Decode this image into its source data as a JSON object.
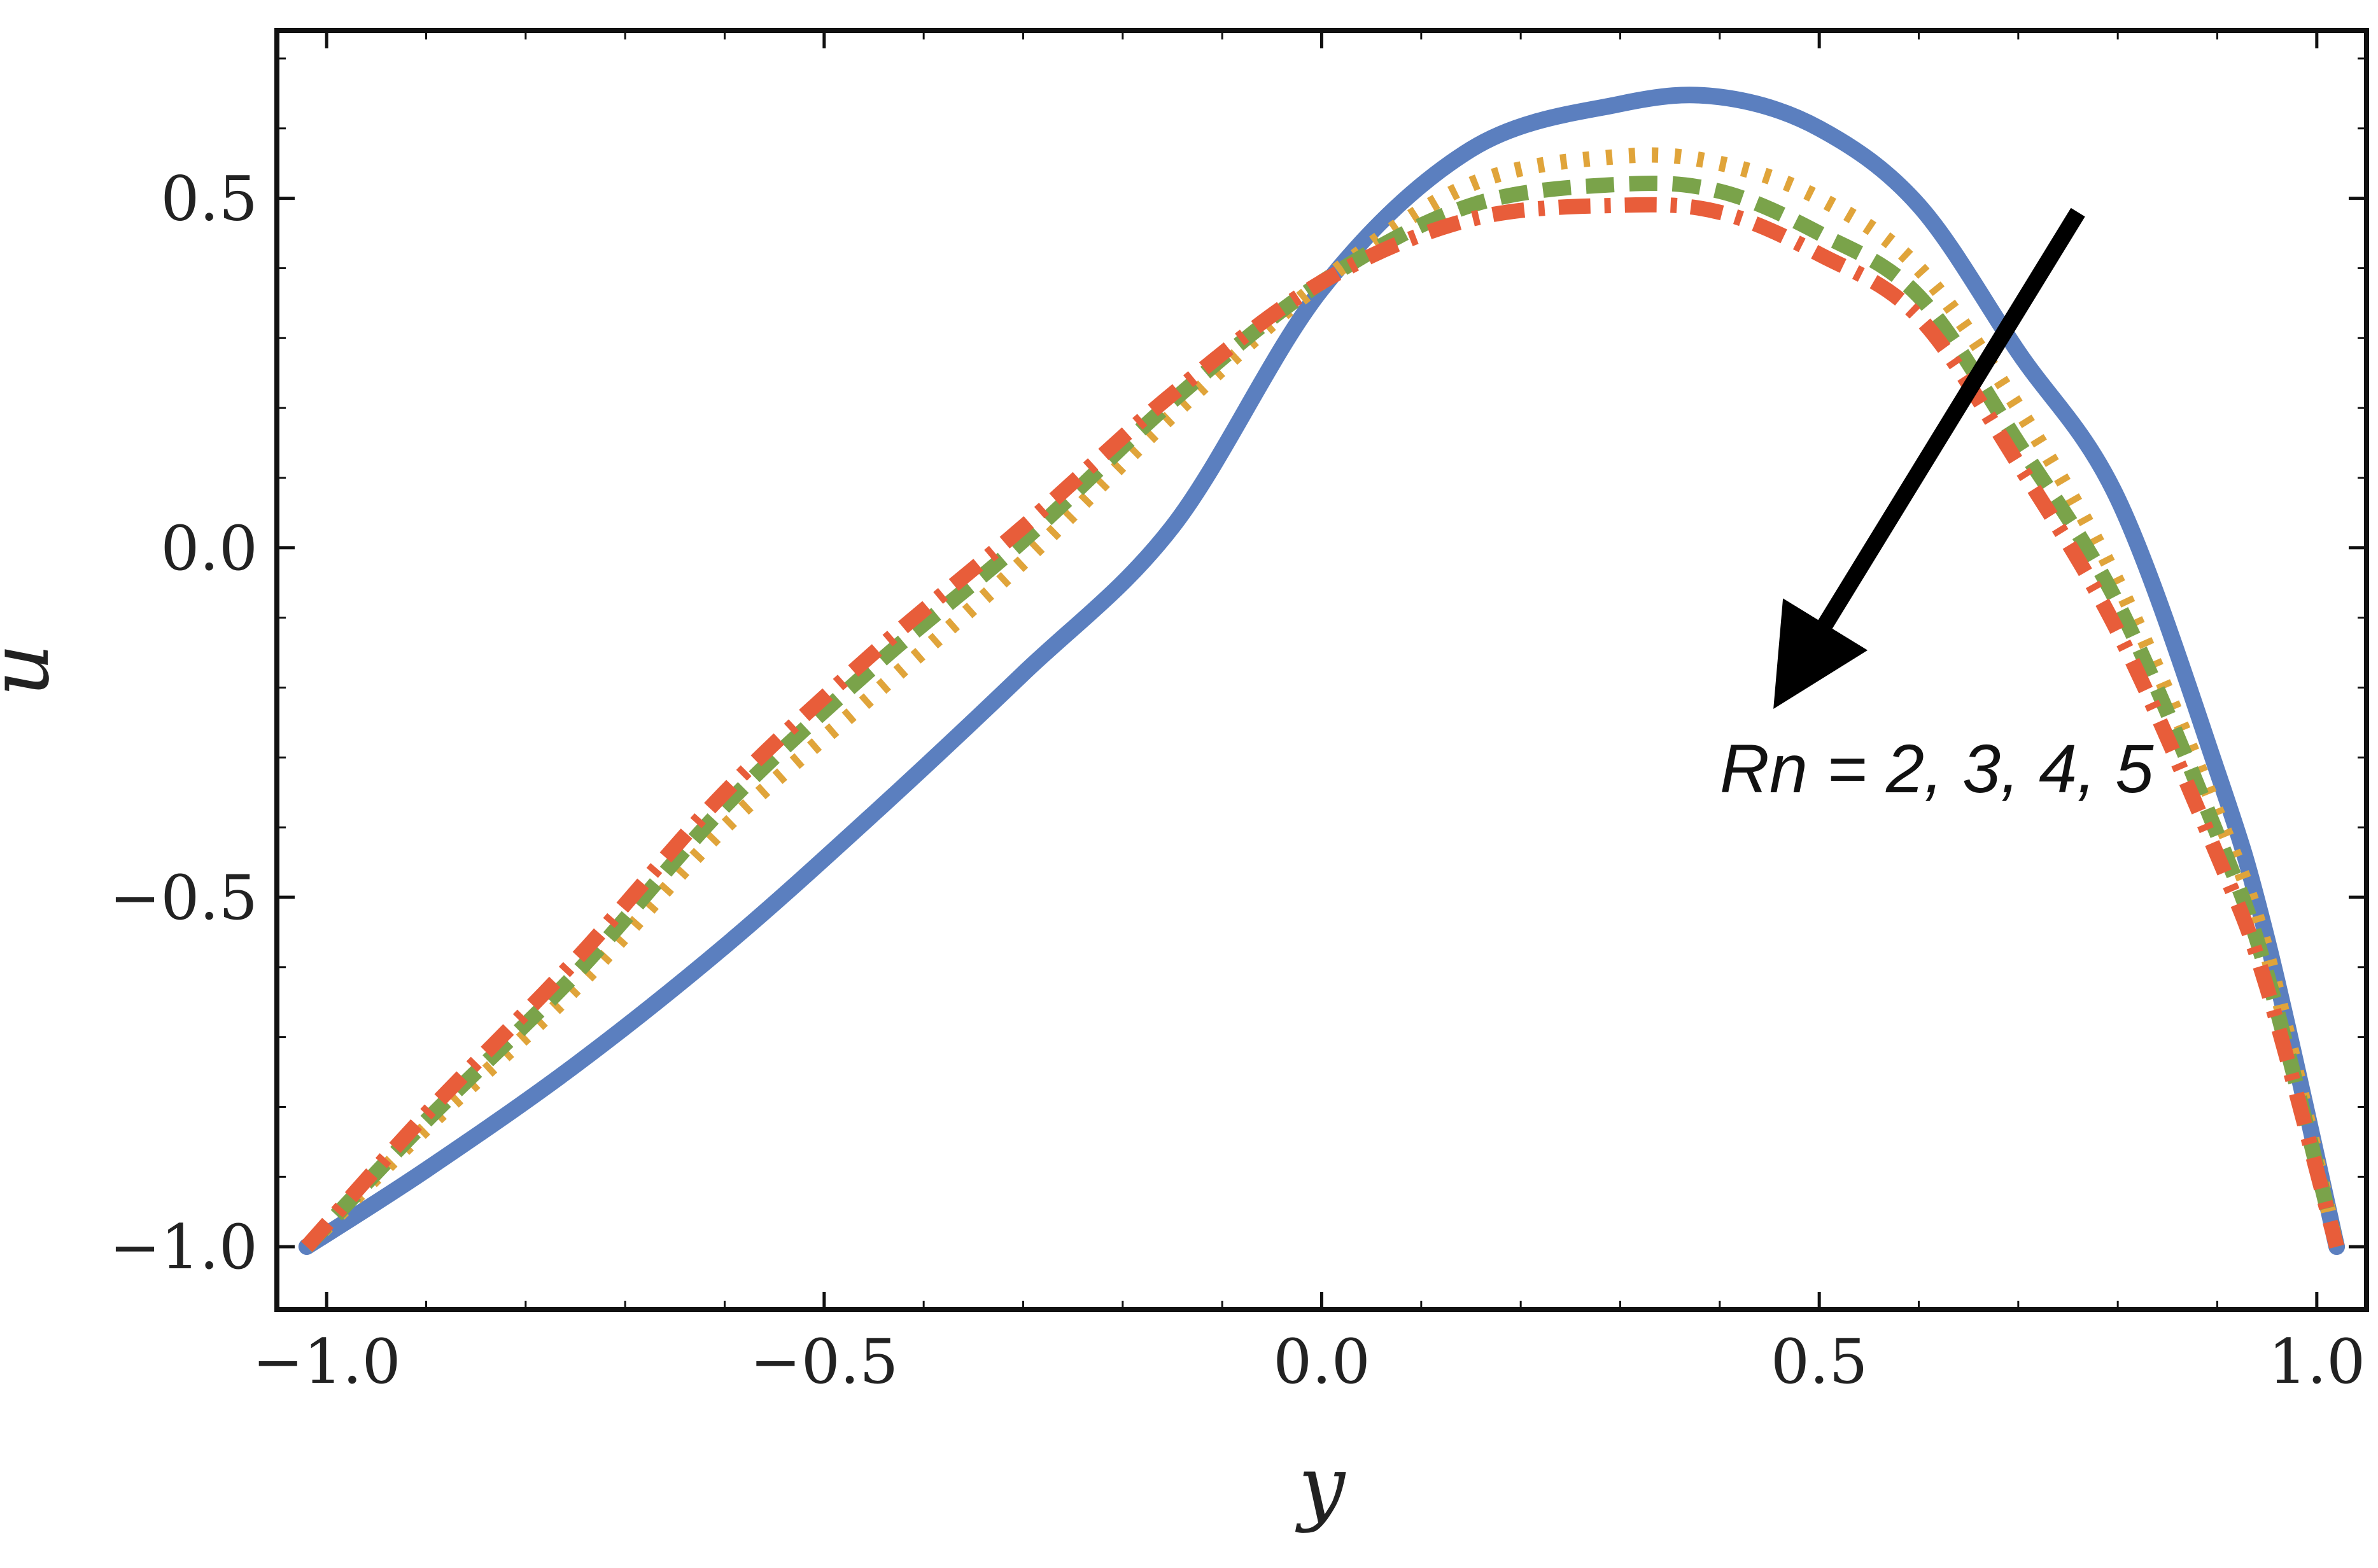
{
  "chart_data": {
    "type": "line",
    "title": "",
    "xlabel": "y",
    "ylabel": "u",
    "xlim": [
      -1.05,
      1.05
    ],
    "ylim": [
      -1.09,
      0.74
    ],
    "x_ticks": [
      -1.0,
      -0.5,
      0.0,
      0.5,
      1.0
    ],
    "x_tick_labels": [
      "−1.0",
      "−0.5",
      "0.0",
      "0.5",
      "1.0"
    ],
    "y_ticks": [
      -1.0,
      -0.5,
      0.0,
      0.5
    ],
    "y_tick_labels": [
      "−1.0",
      "−0.5",
      "0.0",
      "0.5"
    ],
    "grid": false,
    "x": [
      -1.02,
      -0.9,
      -0.75,
      -0.6,
      -0.45,
      -0.3,
      -0.15,
      0.0,
      0.15,
      0.3,
      0.4,
      0.5,
      0.6,
      0.7,
      0.8,
      0.9,
      0.95,
      1.02
    ],
    "series": [
      {
        "name": "Rn = 2",
        "color": "#5b7fbf",
        "dash": "solid",
        "values": [
          -1.0,
          -0.89,
          -0.74,
          -0.57,
          -0.38,
          -0.18,
          0.03,
          0.37,
          0.57,
          0.635,
          0.645,
          0.6,
          0.49,
          0.28,
          0.07,
          -0.32,
          -0.56,
          -1.0
        ]
      },
      {
        "name": "Rn = 3",
        "color": "#e0a43a",
        "dash": "dotted",
        "values": [
          -1.0,
          -0.83,
          -0.63,
          -0.4,
          -0.21,
          -0.02,
          0.19,
          0.38,
          0.52,
          0.56,
          0.55,
          0.5,
          0.4,
          0.2,
          -0.05,
          -0.38,
          -0.58,
          -1.0
        ]
      },
      {
        "name": "Rn = 4",
        "color": "#7aa34a",
        "dash": "dashed",
        "values": [
          -1.0,
          -0.82,
          -0.61,
          -0.37,
          -0.17,
          0.01,
          0.21,
          0.38,
          0.49,
          0.52,
          0.51,
          0.45,
          0.36,
          0.15,
          -0.08,
          -0.41,
          -0.61,
          -1.0
        ]
      },
      {
        "name": "Rn = 5",
        "color": "#e85d3a",
        "dash": "dashdot",
        "values": [
          -1.0,
          -0.81,
          -0.59,
          -0.35,
          -0.15,
          0.03,
          0.22,
          0.38,
          0.47,
          0.49,
          0.48,
          0.42,
          0.33,
          0.12,
          -0.12,
          -0.44,
          -0.63,
          -1.0
        ]
      }
    ],
    "annotation": {
      "text": "Rn = 2, 3, 4, 5",
      "arrow_from": [
        0.76,
        0.48
      ],
      "arrow_to": [
        0.48,
        -0.17
      ],
      "text_pos": [
        0.4,
        -0.35
      ]
    }
  }
}
